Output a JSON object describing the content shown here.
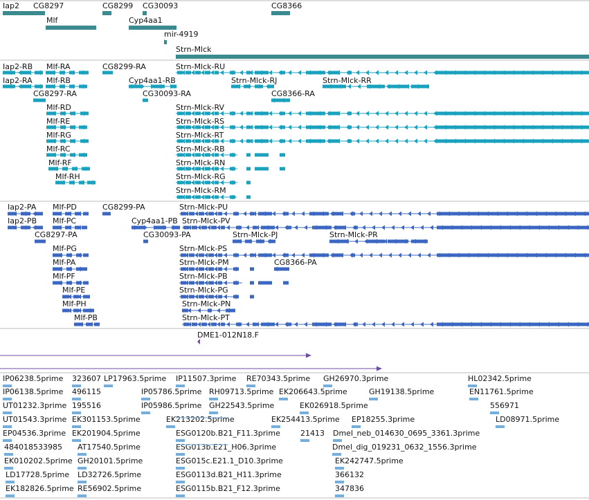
{
  "colors": {
    "gene": "#3a8a8f",
    "transcript": "#1aa1bd",
    "protein": "#3b67c2",
    "cdna": "#6d4ea3",
    "est": "#76aedb",
    "separator": "#bdbdbd"
  },
  "tracks": {
    "genes": [
      "Iap2",
      "CG8297",
      "CG8299",
      "CG30093",
      "CG8366",
      "Mlf",
      "Cyp4aa1",
      "mir-4919",
      "Strn-Mlck"
    ],
    "transcripts": [
      "Iap2-RB",
      "Mlf-RA",
      "CG8299-RA",
      "Strn-Mlck-RU",
      "Iap2-RA",
      "Mlf-RB",
      "Cyp4aa1-RB",
      "Strn-Mlck-RJ",
      "Strn-Mlck-RR",
      "CG8297-RA",
      "CG30093-RA",
      "CG8366-RA",
      "Mlf-RD",
      "Strn-Mlck-RV",
      "Mlf-RE",
      "Strn-Mlck-RS",
      "Mlf-RG",
      "Strn-Mlck-RT",
      "Mlf-RC",
      "Strn-Mlck-RB",
      "Mlf-RF",
      "Strn-Mlck-RN",
      "Mlf-RH",
      "Strn-Mlck-RG",
      "Strn-Mlck-RM"
    ],
    "proteins": [
      "Iap2-PA",
      "Mlf-PD",
      "CG8299-PA",
      "Strn-Mlck-PU",
      "Iap2-PB",
      "Mlf-PC",
      "Cyp4aa1-PB",
      "Strn-Mlck-PV",
      "CG8297-PA",
      "CG30093-PA",
      "Strn-Mlck-PJ",
      "Strn-Mlck-PR",
      "Mlf-PG",
      "Strn-Mlck-PS",
      "Mlf-PA",
      "Strn-Mlck-PM",
      "CG8366-PA",
      "Mlf-PF",
      "Strn-Mlck-PB",
      "Mlf-PE",
      "Strn-Mlck-PG",
      "Mlf-PH",
      "Strn-Mlck-PN",
      "Mlf-PB",
      "Strn-Mlck-PT"
    ],
    "cdna": [
      "DME1-012N18.F"
    ],
    "ests": [
      "IP06238.5prime",
      "323607",
      "LP17963.5prime",
      "IP11507.3prime",
      "RE70343.5prime",
      "GH26970.3prime",
      "HL02342.5prime",
      "IP06138.5prime",
      "496115",
      "IP05786.5prime",
      "RH09713.5prime",
      "EK206643.5prime",
      "GH19138.5prime",
      "EN11761.5prime",
      "UT01232.3prime",
      "195516",
      "IP05986.5prime",
      "GH22543.5prime",
      "EK026918.5prime",
      "556971",
      "UT01543.3prime",
      "EK301153.5prime",
      "EK213202.5prime",
      "EK254413.5prime",
      "EP18255.3prime",
      "LD08971.5prime",
      "EP04536.3prime",
      "EK201904.5prime",
      "ESG0120b.B21_F11.3prime",
      "21413",
      "Dmel_neb_014630_0695_3361.3prime",
      "484018533985",
      "AT17540.5prime",
      "ESG013b.E21_H06.3prime",
      "Dmel_dig_019231_0632_1556.3prime",
      "EK010202.5prime",
      "GH20101.5prime",
      "ESG015c.E21.1_D10.3prime",
      "EK242747.5prime",
      "LD17728.5prime",
      "LD32726.5prime",
      "ESG0113d.B21_H11.3prime",
      "366132",
      "EK182826.5prime",
      "RE56902.5prime",
      "ESG0115b.B21_F12.3prime",
      "347836"
    ]
  }
}
